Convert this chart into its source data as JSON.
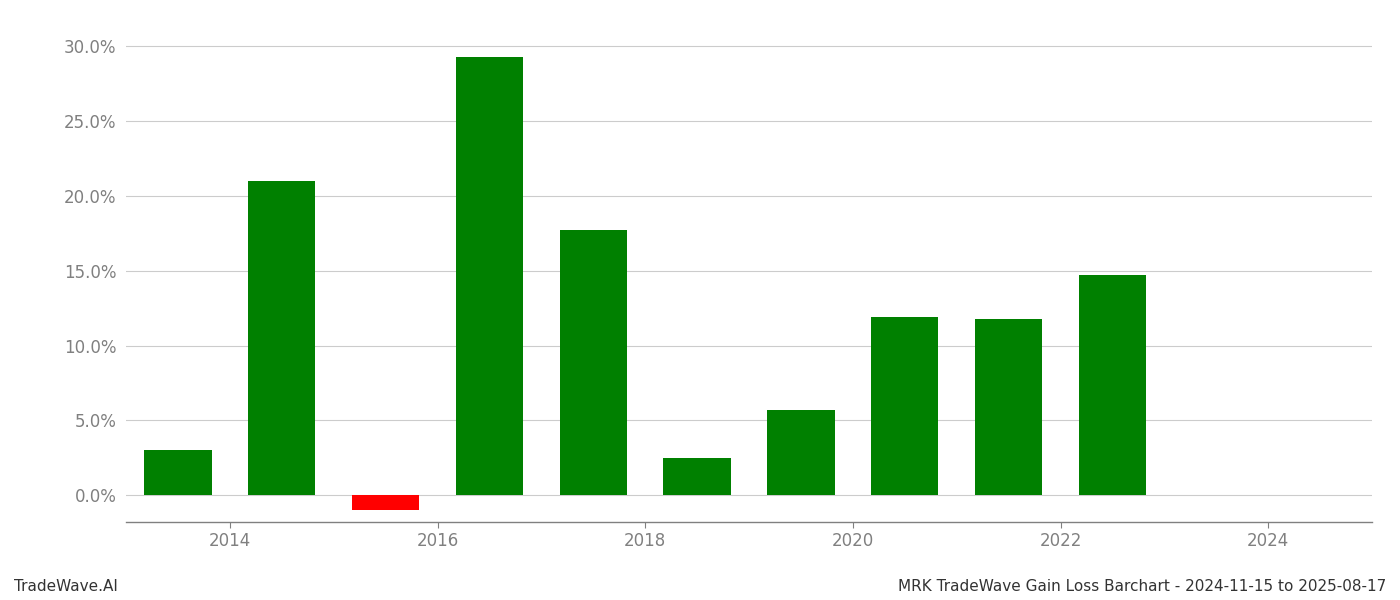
{
  "years": [
    2013.5,
    2014.5,
    2015.5,
    2016.5,
    2017.5,
    2018.5,
    2019.5,
    2020.5,
    2021.5,
    2022.5,
    2023.5
  ],
  "x_labels": [
    2014,
    2016,
    2018,
    2020,
    2022,
    2024
  ],
  "values": [
    0.03,
    0.21,
    -0.01,
    0.293,
    0.177,
    0.025,
    0.057,
    0.119,
    0.118,
    0.147,
    0.0
  ],
  "colors": [
    "#008000",
    "#008000",
    "#ff0000",
    "#008000",
    "#008000",
    "#008000",
    "#008000",
    "#008000",
    "#008000",
    "#008000",
    "#008000"
  ],
  "title": "MRK TradeWave Gain Loss Barchart - 2024-11-15 to 2025-08-17",
  "watermark": "TradeWave.AI",
  "ylim_min": -0.018,
  "ylim_max": 0.315,
  "yticks": [
    0.0,
    0.05,
    0.1,
    0.15,
    0.2,
    0.25,
    0.3
  ],
  "background_color": "#ffffff",
  "grid_color": "#cccccc",
  "bar_width": 0.65,
  "title_fontsize": 11,
  "tick_fontsize": 12,
  "watermark_fontsize": 11
}
